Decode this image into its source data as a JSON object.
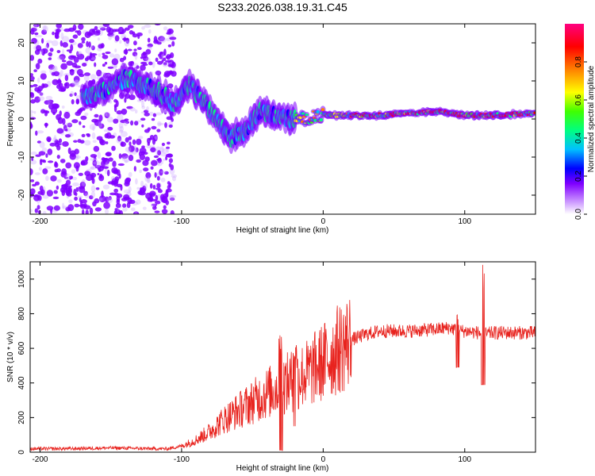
{
  "title": "S233.2026.038.19.31.C45",
  "chart_data": [
    {
      "type": "heatmap",
      "xlabel": "Height of straight line (km)",
      "ylabel": "Frequency (Hz)",
      "xlim": [
        -207,
        150
      ],
      "ylim": [
        -25,
        25
      ],
      "xticks": [
        -200,
        -100,
        0,
        100
      ],
      "yticks": [
        -20,
        -10,
        0,
        10,
        20
      ],
      "colorbar": {
        "label": "Normalized spectral amplitude",
        "range": [
          0,
          1
        ],
        "ticks": [
          "0.0",
          "0.2",
          "0.4",
          "0.6",
          "0.8"
        ],
        "colors": [
          "#ffffff",
          "#8000ff",
          "#0000ff",
          "#00c0ff",
          "#00ff80",
          "#40ff00",
          "#ffff00",
          "#ff8000",
          "#ff0000",
          "#ff0080"
        ]
      },
      "ridge": {
        "x": [
          -165,
          -150,
          -140,
          -120,
          -105,
          -95,
          -85,
          -75,
          -65,
          -55,
          -45,
          -35,
          -25,
          -15,
          0,
          20,
          40,
          60,
          80,
          100,
          120,
          150
        ],
        "freq": [
          6,
          8,
          11,
          8,
          4,
          9,
          5,
          0,
          -5,
          -3,
          2,
          1,
          0,
          0,
          1,
          1,
          1,
          1.5,
          2,
          1,
          1,
          1.5
        ]
      }
    },
    {
      "type": "line",
      "xlabel": "Height of straight line (km)",
      "ylabel": "SNR (10 * v/v)",
      "xlim": [
        -207,
        150
      ],
      "ylim": [
        0,
        1100
      ],
      "xticks": [
        -200,
        -100,
        0,
        100
      ],
      "yticks": [
        0,
        200,
        400,
        600,
        800,
        1000
      ],
      "series": [
        {
          "name": "SNR",
          "color": "#e8231e",
          "x": [
            -207,
            -180,
            -150,
            -120,
            -110,
            -100,
            -90,
            -80,
            -70,
            -60,
            -50,
            -40,
            -30,
            -20,
            -10,
            0,
            10,
            20,
            30,
            40,
            60,
            80,
            90,
            95,
            100,
            110,
            113,
            120,
            150
          ],
          "y": [
            20,
            20,
            25,
            20,
            20,
            35,
            70,
            120,
            190,
            240,
            290,
            340,
            380,
            420,
            460,
            520,
            590,
            650,
            680,
            700,
            700,
            710,
            720,
            700,
            700,
            690,
            680,
            690,
            690
          ]
        }
      ],
      "events": [
        {
          "x": -30,
          "peak": 700,
          "low": 10
        },
        {
          "x": -20,
          "peak": 640,
          "low": 150
        },
        {
          "x": 95,
          "peak": 800,
          "low": 490
        },
        {
          "x": 113,
          "peak": 1090,
          "low": 390
        }
      ]
    }
  ]
}
